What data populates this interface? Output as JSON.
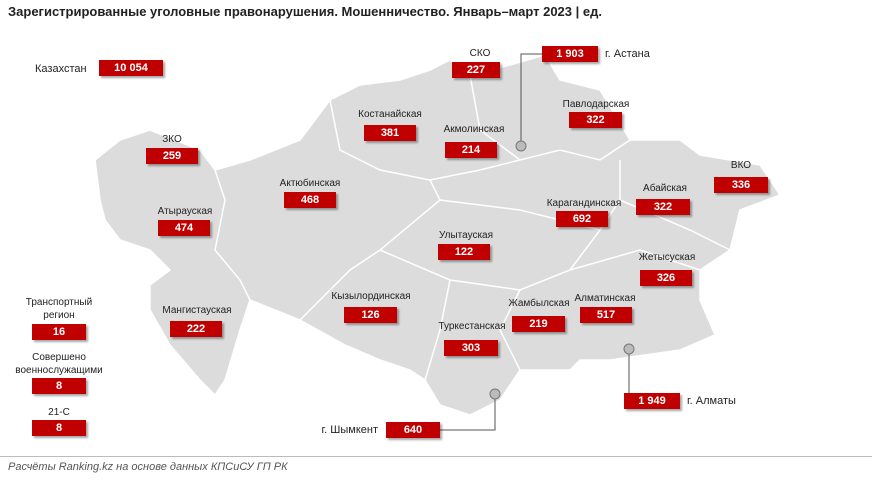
{
  "title": "Зарегистрированные уголовные правонарушения. Мошенничество. Январь–март 2023 | ед.",
  "source": "Расчёты Ranking.kz на основе данных КПСиСУ ГП РК",
  "regions": [
    {
      "name": "Казахстан",
      "value": "10 054"
    },
    {
      "name": "СКО",
      "value": "227"
    },
    {
      "name": "г. Астана",
      "value": "1 903"
    },
    {
      "name": "Павлодарская",
      "value": "322"
    },
    {
      "name": "Костанайская",
      "value": "381"
    },
    {
      "name": "Акмолинская",
      "value": "214"
    },
    {
      "name": "ЗКО",
      "value": "259"
    },
    {
      "name": "ВКО",
      "value": "336"
    },
    {
      "name": "Актюбинская",
      "value": "468"
    },
    {
      "name": "Абайская",
      "value": "322"
    },
    {
      "name": "Карагандинская",
      "value": "692"
    },
    {
      "name": "Атырауская",
      "value": "474"
    },
    {
      "name": "Улытауская",
      "value": "122"
    },
    {
      "name": "Жетысуская",
      "value": "326"
    },
    {
      "name": "Транспортный регион",
      "value": "16"
    },
    {
      "name": "Кызылординская",
      "value": "126"
    },
    {
      "name": "Жамбылская",
      "value": "219"
    },
    {
      "name": "Алматинская",
      "value": "517"
    },
    {
      "name": "Мангистауская",
      "value": "222"
    },
    {
      "name": "Туркестанская",
      "value": "303"
    },
    {
      "name": "Совершено военнослужащими",
      "value": "8"
    },
    {
      "name": "г. Алматы",
      "value": "1 949"
    },
    {
      "name": "21-С",
      "value": "8"
    },
    {
      "name": "г. Шымкент",
      "value": "640"
    }
  ]
}
